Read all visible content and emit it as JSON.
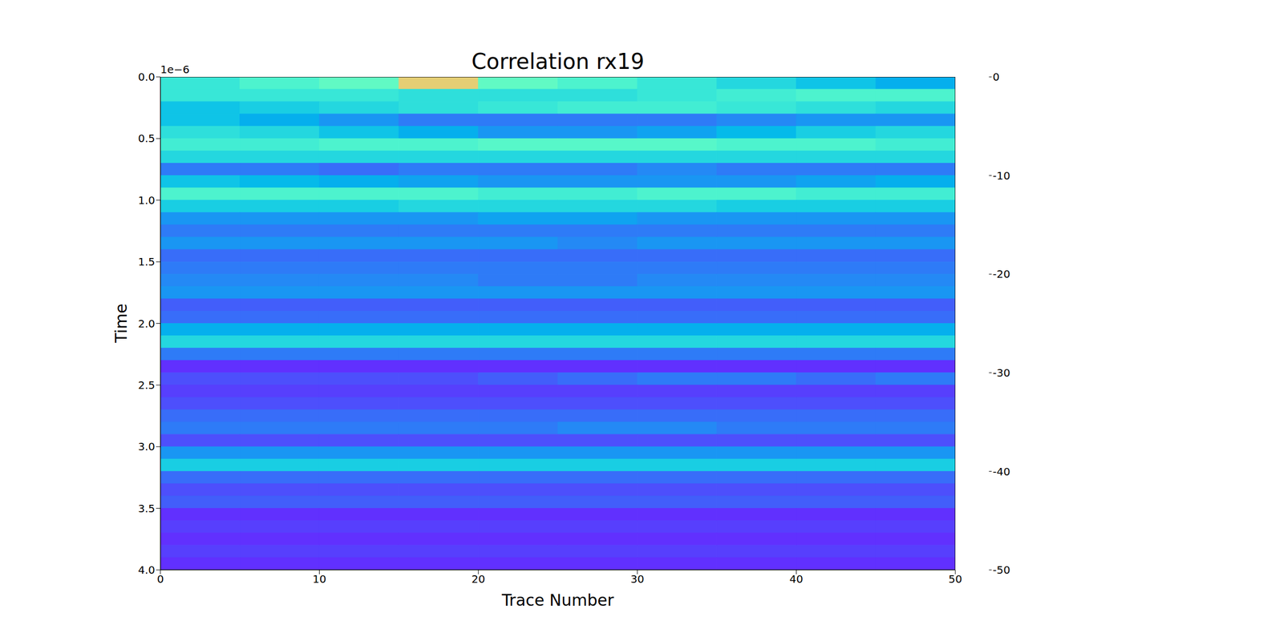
{
  "chart_data": {
    "type": "heatmap",
    "title": "Correlation rx19",
    "x_label": "Trace Number",
    "y_label": "Time",
    "y_offset_label": "1e−6",
    "xlim": [
      0,
      50
    ],
    "xticks": [
      0,
      10,
      20,
      30,
      40,
      50
    ],
    "ylim": [
      0,
      4
    ],
    "yticks": [
      {
        "value": 0,
        "label": "0.0"
      },
      {
        "value": 0.5,
        "label": "0.5"
      },
      {
        "value": 1,
        "label": "1.0"
      },
      {
        "value": 1.5,
        "label": "1.5"
      },
      {
        "value": 2,
        "label": "2.0"
      },
      {
        "value": 2.5,
        "label": "2.5"
      },
      {
        "value": 3,
        "label": "3.0"
      },
      {
        "value": 3.5,
        "label": "3.5"
      },
      {
        "value": 4,
        "label": "4.0"
      }
    ],
    "x_edges": [
      0,
      5,
      10,
      15,
      20,
      25,
      30,
      35,
      40,
      45,
      50
    ],
    "y_edges": [
      0,
      0.1,
      0.2,
      0.3,
      0.4,
      0.5,
      0.6,
      0.7,
      0.8,
      0.9,
      1,
      1.1,
      1.2,
      1.3,
      1.4,
      1.5,
      1.6,
      1.7,
      1.8,
      1.9,
      2,
      2.1,
      2.2,
      2.3,
      2.4,
      2.5,
      2.6,
      2.7,
      2.8,
      2.9,
      3,
      3.1,
      3.2,
      3.3,
      3.4,
      3.5,
      3.6,
      3.7,
      3.8,
      3.9,
      4
    ],
    "cells": [
      [
        -32,
        -30,
        -28,
        -15,
        -28,
        -30,
        -32,
        -34,
        -36,
        -38
      ],
      [
        -32,
        -32,
        -32,
        -33,
        -33,
        -33,
        -32,
        -31,
        -30,
        -30
      ],
      [
        -36,
        -35,
        -34,
        -33,
        -32,
        -31,
        -31,
        -32,
        -33,
        -34
      ],
      [
        -36,
        -38,
        -40,
        -42,
        -42,
        -42,
        -42,
        -41,
        -40,
        -40
      ],
      [
        -33,
        -34,
        -36,
        -38,
        -40,
        -40,
        -39,
        -37,
        -35,
        -34
      ],
      [
        -31,
        -31,
        -30,
        -30,
        -29,
        -29,
        -29,
        -30,
        -30,
        -31
      ],
      [
        -34,
        -34,
        -34,
        -34,
        -34,
        -34,
        -34,
        -34,
        -34,
        -34
      ],
      [
        -42,
        -42,
        -43,
        -42,
        -42,
        -42,
        -41,
        -42,
        -42,
        -42
      ],
      [
        -36,
        -37,
        -38,
        -39,
        -40,
        -40,
        -40,
        -40,
        -39,
        -38
      ],
      [
        -30,
        -30,
        -30,
        -30,
        -31,
        -31,
        -30,
        -30,
        -31,
        -31
      ],
      [
        -35,
        -35,
        -35,
        -34,
        -34,
        -34,
        -34,
        -35,
        -35,
        -35
      ],
      [
        -40,
        -40,
        -40,
        -40,
        -39,
        -39,
        -40,
        -40,
        -40,
        -40
      ],
      [
        -42,
        -42,
        -42,
        -42,
        -42,
        -42,
        -42,
        -42,
        -42,
        -42
      ],
      [
        -40,
        -40,
        -40,
        -40,
        -40,
        -41,
        -40,
        -40,
        -40,
        -40
      ],
      [
        -43,
        -43,
        -43,
        -43,
        -43,
        -43,
        -43,
        -43,
        -43,
        -43
      ],
      [
        -42,
        -42,
        -42,
        -42,
        -42,
        -42,
        -42,
        -42,
        -42,
        -42
      ],
      [
        -41,
        -41,
        -41,
        -41,
        -42,
        -42,
        -41,
        -41,
        -41,
        -41
      ],
      [
        -40,
        -40,
        -40,
        -40,
        -40,
        -40,
        -40,
        -40,
        -40,
        -40
      ],
      [
        -44,
        -44,
        -44,
        -44,
        -44,
        -44,
        -44,
        -44,
        -44,
        -44
      ],
      [
        -43,
        -43,
        -43,
        -43,
        -43,
        -43,
        -43,
        -43,
        -43,
        -43
      ],
      [
        -38,
        -38,
        -38,
        -38,
        -38,
        -38,
        -38,
        -38,
        -38,
        -38
      ],
      [
        -34,
        -34,
        -34,
        -34,
        -34,
        -34,
        -34,
        -34,
        -34,
        -34
      ],
      [
        -42,
        -42,
        -42,
        -42,
        -42,
        -42,
        -42,
        -42,
        -42,
        -42
      ],
      [
        -47,
        -47,
        -47,
        -47,
        -47,
        -47,
        -47,
        -47,
        -47,
        -47
      ],
      [
        -45,
        -45,
        -45,
        -45,
        -44,
        -43,
        -42,
        -42,
        -43,
        -42
      ],
      [
        -46,
        -46,
        -46,
        -46,
        -46,
        -46,
        -46,
        -46,
        -46,
        -46
      ],
      [
        -45,
        -45,
        -45,
        -45,
        -45,
        -45,
        -45,
        -45,
        -45,
        -45
      ],
      [
        -43,
        -43,
        -43,
        -43,
        -43,
        -43,
        -43,
        -43,
        -43,
        -43
      ],
      [
        -42,
        -42,
        -42,
        -42,
        -42,
        -41,
        -41,
        -42,
        -42,
        -42
      ],
      [
        -45,
        -45,
        -45,
        -45,
        -45,
        -45,
        -45,
        -45,
        -45,
        -45
      ],
      [
        -40,
        -40,
        -40,
        -40,
        -40,
        -40,
        -40,
        -40,
        -40,
        -40
      ],
      [
        -35,
        -35,
        -35,
        -35,
        -35,
        -35,
        -35,
        -35,
        -35,
        -35
      ],
      [
        -43,
        -43,
        -43,
        -43,
        -43,
        -43,
        -43,
        -43,
        -43,
        -43
      ],
      [
        -45,
        -45,
        -45,
        -45,
        -45,
        -45,
        -45,
        -45,
        -45,
        -45
      ],
      [
        -44,
        -44,
        -44,
        -44,
        -44,
        -44,
        -44,
        -44,
        -44,
        -44
      ],
      [
        -47,
        -47,
        -47,
        -47,
        -47,
        -47,
        -47,
        -47,
        -47,
        -47
      ],
      [
        -46,
        -46,
        -46,
        -46,
        -46,
        -46,
        -46,
        -46,
        -46,
        -46
      ],
      [
        -47,
        -47,
        -47,
        -47,
        -47,
        -47,
        -47,
        -47,
        -47,
        -47
      ],
      [
        -46,
        -46,
        -46,
        -46,
        -46,
        -46,
        -46,
        -46,
        -46,
        -46
      ],
      [
        -47,
        -47,
        -47,
        -47,
        -47,
        -47,
        -47,
        -47,
        -47,
        -47
      ]
    ],
    "colorbar": {
      "range": [
        -50,
        0
      ],
      "ticks": [
        0,
        -10,
        -20,
        -30,
        -40,
        -50
      ]
    }
  }
}
